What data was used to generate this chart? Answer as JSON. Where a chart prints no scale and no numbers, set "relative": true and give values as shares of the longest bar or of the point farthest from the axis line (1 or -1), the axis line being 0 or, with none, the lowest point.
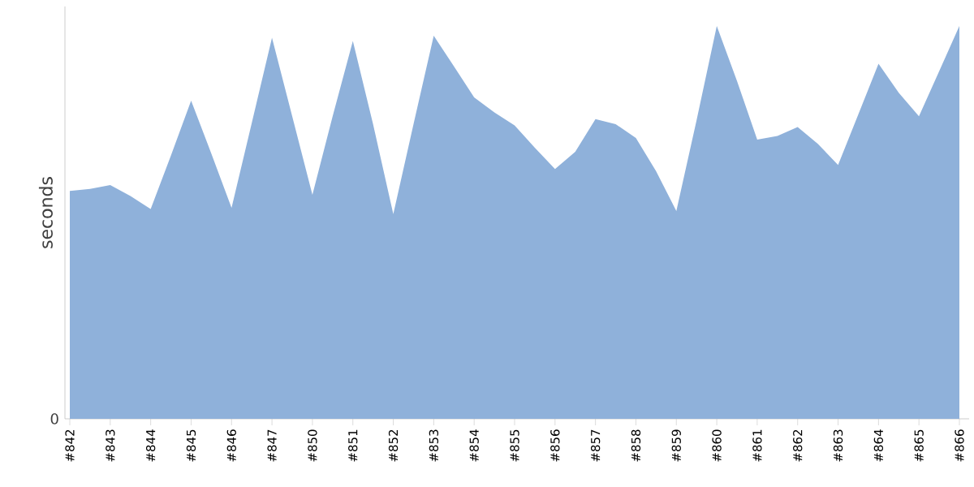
{
  "chart_data": {
    "type": "area",
    "ylabel": "seconds",
    "relative": true,
    "color": "#8fb1da",
    "categories": [
      "#842",
      null,
      "#843",
      null,
      "#844",
      null,
      "#845",
      null,
      "#846",
      null,
      "#847",
      null,
      "#850",
      null,
      "#851",
      null,
      "#852",
      null,
      "#853",
      null,
      "#854",
      null,
      "#855",
      null,
      "#856",
      null,
      "#857",
      null,
      "#858",
      null,
      "#859",
      null,
      "#860",
      null,
      "#861",
      null,
      "#862",
      null,
      "#863",
      null,
      "#864",
      null,
      "#865",
      null,
      "#866"
    ],
    "values": [
      0.58,
      0.585,
      0.595,
      0.567,
      0.534,
      0.67,
      0.81,
      0.675,
      0.537,
      0.753,
      0.97,
      0.77,
      0.57,
      0.77,
      0.962,
      0.75,
      0.521,
      0.75,
      0.975,
      0.897,
      0.818,
      0.78,
      0.747,
      0.69,
      0.636,
      0.68,
      0.763,
      0.75,
      0.715,
      0.63,
      0.529,
      0.76,
      1.0,
      0.86,
      0.711,
      0.72,
      0.743,
      0.7,
      0.646,
      0.775,
      0.904,
      0.83,
      0.77,
      0.885,
      1.0
    ],
    "annotations": [
      "0"
    ]
  }
}
